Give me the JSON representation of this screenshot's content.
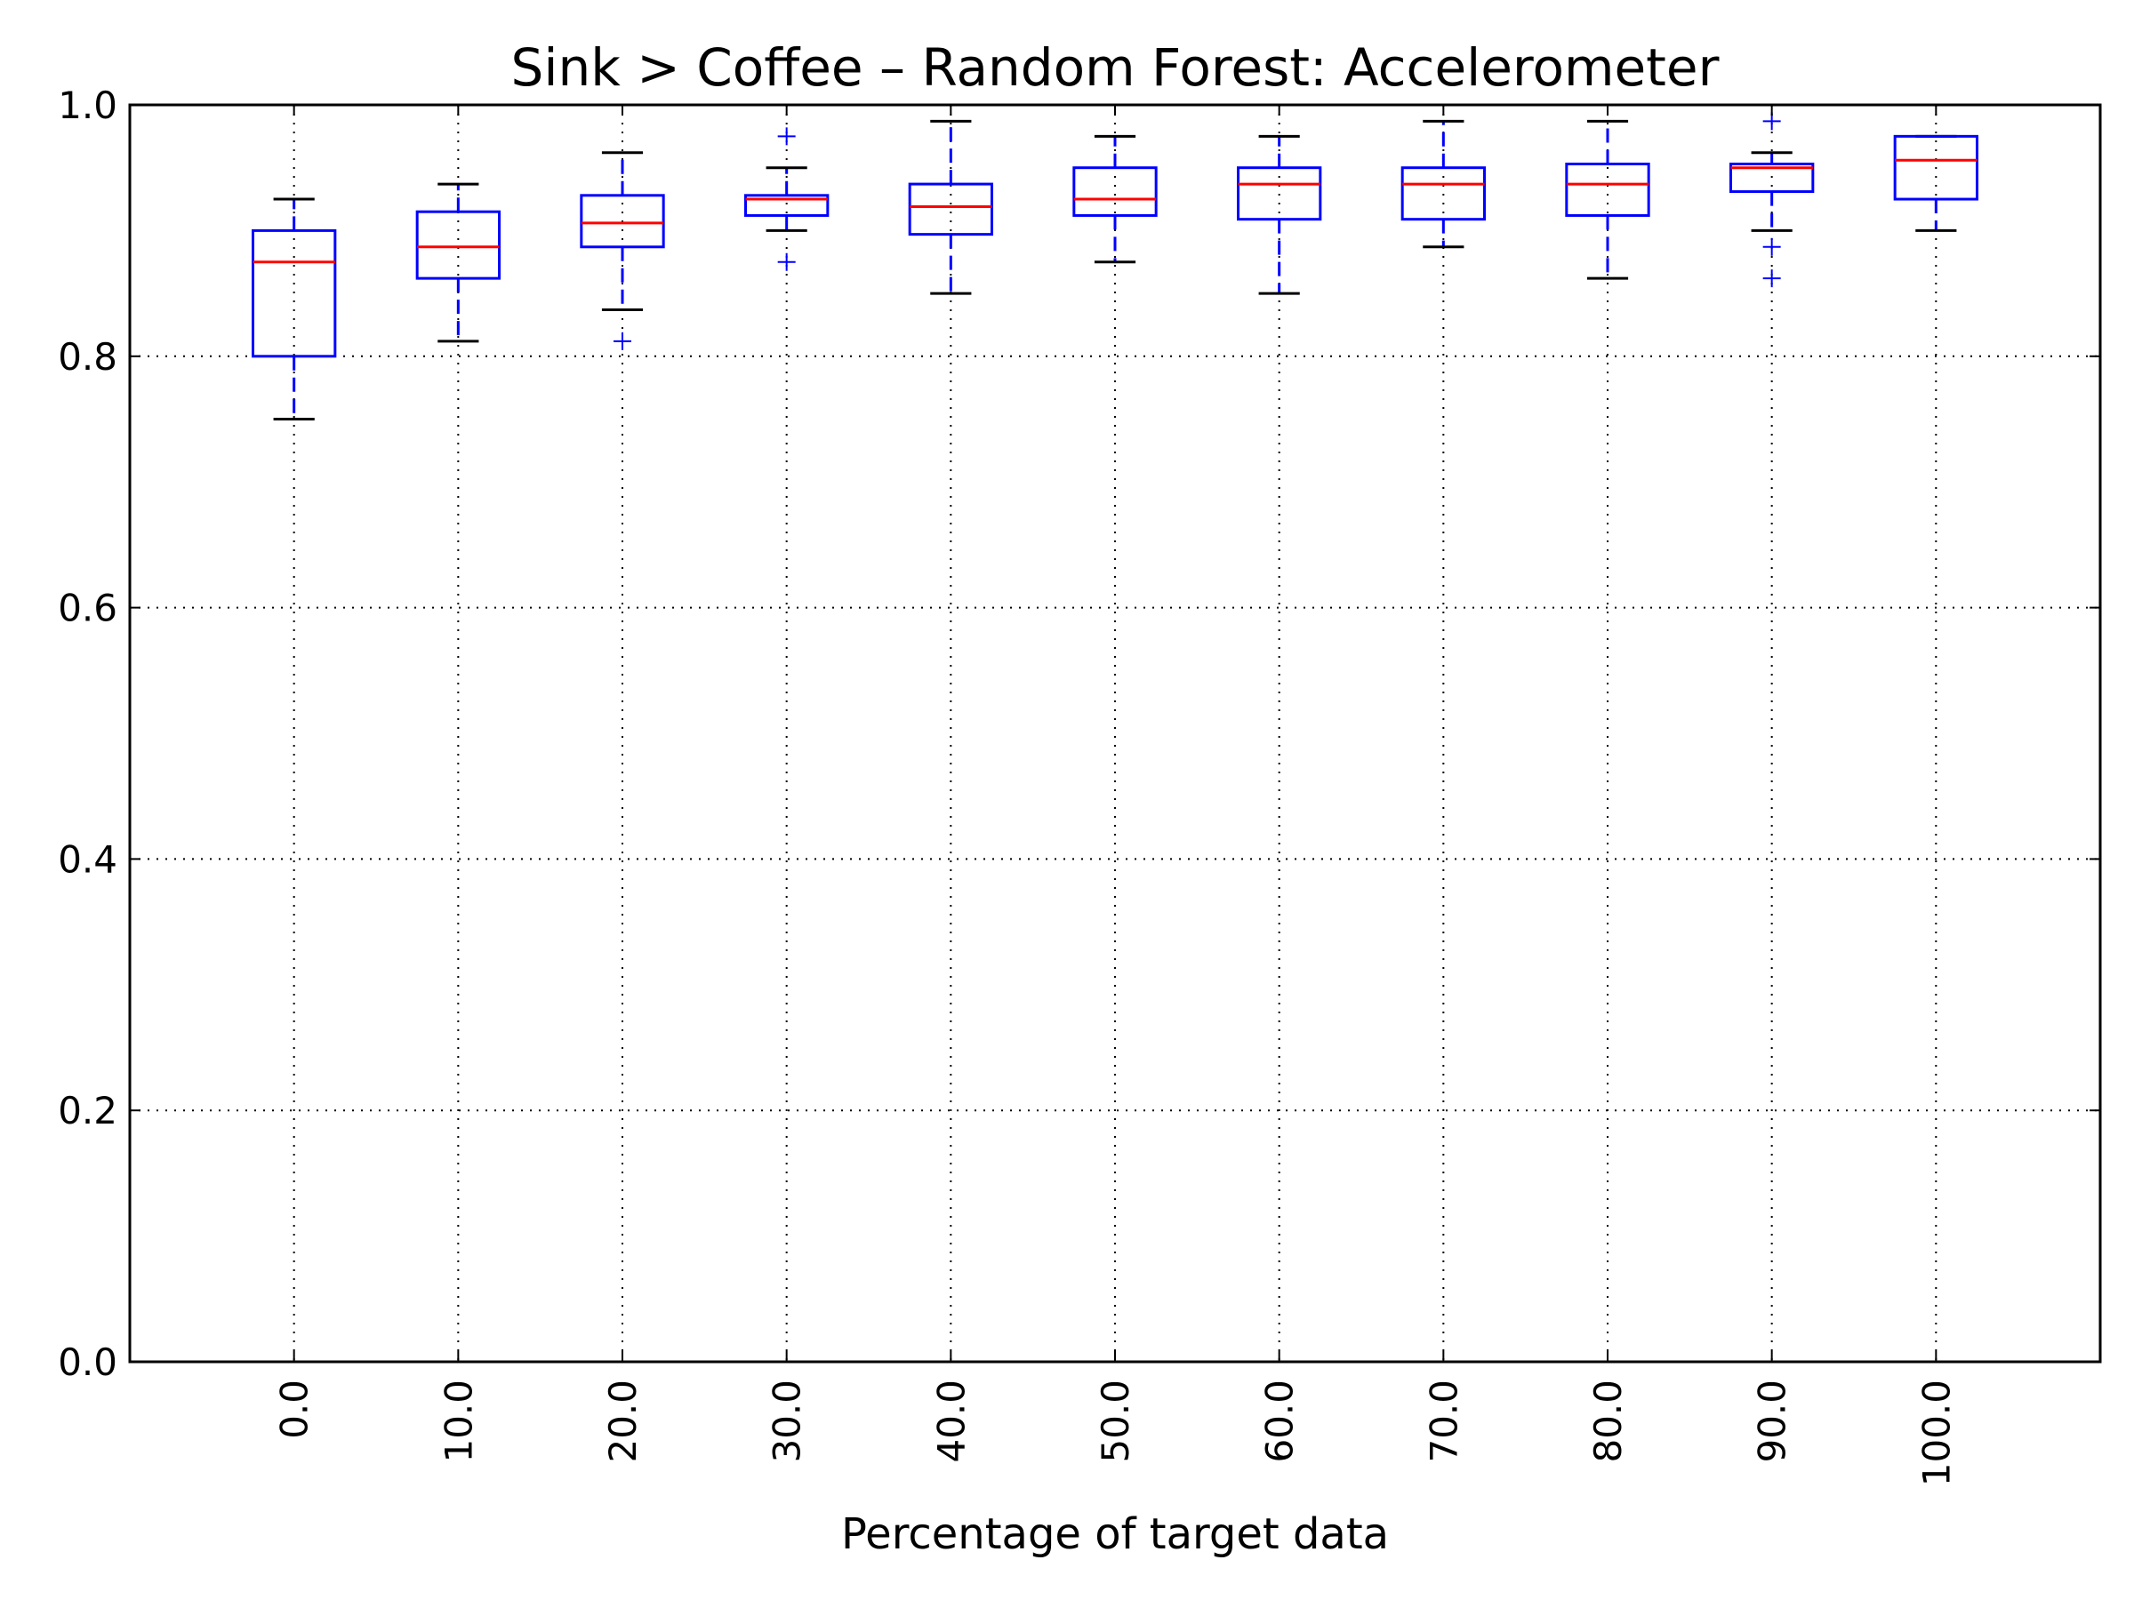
{
  "chart_data": {
    "type": "box",
    "title": "Sink > Coffee – Random Forest: Accelerometer",
    "xlabel": "Percentage of target data",
    "ylabel": "",
    "ylim": [
      0.0,
      1.0
    ],
    "yticks": [
      "0.0",
      "0.2",
      "0.4",
      "0.6",
      "0.8",
      "1.0"
    ],
    "grid": true,
    "colors": {
      "box": "#0000ff",
      "median": "#ff0000",
      "cap": "#000000",
      "whisker": "#0000ff",
      "flier": "#0000ff",
      "grid": "#000000"
    },
    "categories": [
      "0.0",
      "10.0",
      "20.0",
      "30.0",
      "40.0",
      "50.0",
      "60.0",
      "70.0",
      "80.0",
      "90.0",
      "100.0"
    ],
    "boxes": [
      {
        "q1": 0.8,
        "median": 0.875,
        "q3": 0.9,
        "whisker_low": 0.75,
        "whisker_high": 0.925,
        "fliers": []
      },
      {
        "q1": 0.862,
        "median": 0.887,
        "q3": 0.915,
        "whisker_low": 0.812,
        "whisker_high": 0.937,
        "fliers": []
      },
      {
        "q1": 0.887,
        "median": 0.906,
        "q3": 0.928,
        "whisker_low": 0.837,
        "whisker_high": 0.962,
        "fliers": [
          0.812
        ]
      },
      {
        "q1": 0.912,
        "median": 0.925,
        "q3": 0.928,
        "whisker_low": 0.9,
        "whisker_high": 0.95,
        "fliers": [
          0.975,
          0.875
        ]
      },
      {
        "q1": 0.897,
        "median": 0.919,
        "q3": 0.937,
        "whisker_low": 0.85,
        "whisker_high": 0.987,
        "fliers": []
      },
      {
        "q1": 0.912,
        "median": 0.925,
        "q3": 0.95,
        "whisker_low": 0.875,
        "whisker_high": 0.975,
        "fliers": []
      },
      {
        "q1": 0.909,
        "median": 0.937,
        "q3": 0.95,
        "whisker_low": 0.85,
        "whisker_high": 0.975,
        "fliers": []
      },
      {
        "q1": 0.909,
        "median": 0.937,
        "q3": 0.95,
        "whisker_low": 0.887,
        "whisker_high": 0.987,
        "fliers": []
      },
      {
        "q1": 0.912,
        "median": 0.937,
        "q3": 0.953,
        "whisker_low": 0.862,
        "whisker_high": 0.987,
        "fliers": []
      },
      {
        "q1": 0.931,
        "median": 0.95,
        "q3": 0.953,
        "whisker_low": 0.9,
        "whisker_high": 0.962,
        "fliers": [
          0.987,
          0.887,
          0.862
        ]
      },
      {
        "q1": 0.925,
        "median": 0.956,
        "q3": 0.975,
        "whisker_low": 0.9,
        "whisker_high": 0.975,
        "fliers": []
      }
    ]
  }
}
